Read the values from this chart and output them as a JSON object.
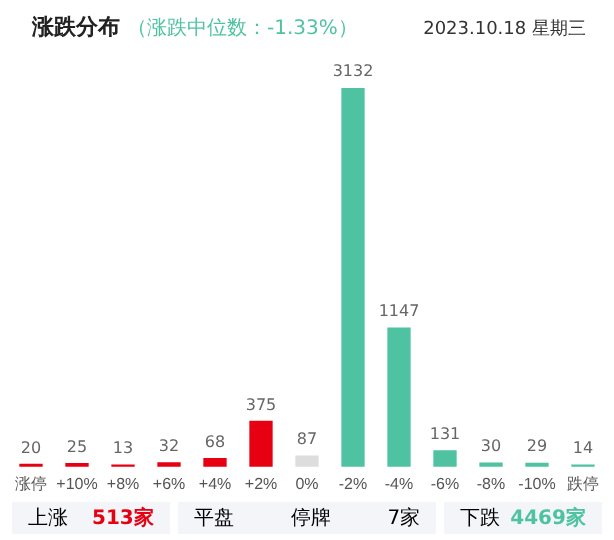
{
  "chart_data": {
    "type": "bar",
    "title": "涨跌分布",
    "subtitle": "（涨跌中位数：-1.33%）",
    "categories": [
      "涨停",
      "+10%",
      "+8%",
      "+6%",
      "+4%",
      "+2%",
      "0%",
      "-2%",
      "-4%",
      "-6%",
      "-8%",
      "-10%",
      "跌停"
    ],
    "values": [
      20,
      25,
      13,
      32,
      68,
      375,
      87,
      3132,
      1147,
      131,
      30,
      29,
      14
    ],
    "colors": [
      "#e60012",
      "#e60012",
      "#e60012",
      "#e60012",
      "#e60012",
      "#e60012",
      "#dddddd",
      "#4fc3a1",
      "#4fc3a1",
      "#4fc3a1",
      "#4fc3a1",
      "#4fc3a1",
      "#4fc3a1"
    ],
    "data_labels": true,
    "grid": false,
    "legend": false,
    "annotations": [
      "2023.10.18 星期三",
      "上涨",
      "513家",
      "平盘",
      "停牌",
      "7家",
      "下跌",
      "4469家"
    ]
  }
}
